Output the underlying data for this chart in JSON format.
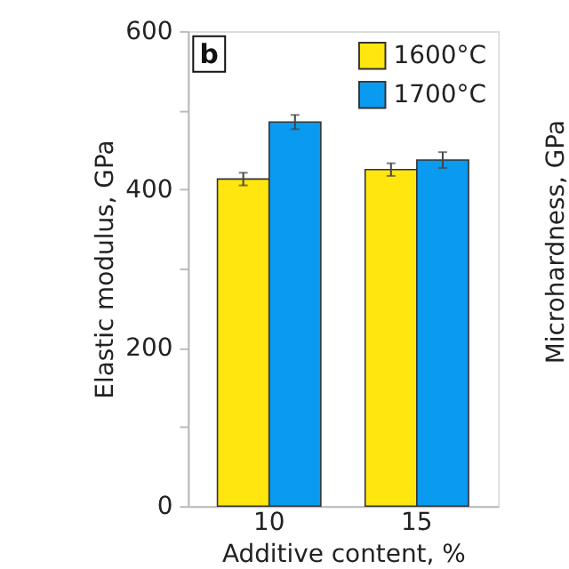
{
  "chart_data": {
    "type": "bar",
    "xlabel": "Additive content, %",
    "ylabel": "Elastic modulus, GPa",
    "categories": [
      "10",
      "15"
    ],
    "series": [
      {
        "name": "1600°C",
        "color": "#ffe60f",
        "values": [
          413,
          425
        ],
        "errors": [
          8,
          8
        ]
      },
      {
        "name": "1700°C",
        "color": "#0a9af0",
        "values": [
          485,
          437
        ],
        "errors": [
          9,
          10
        ]
      }
    ],
    "ylim": [
      0,
      600
    ],
    "yticks": [
      0,
      {
        "value": 100,
        "label": null
      },
      200,
      {
        "value": 300,
        "label": null
      },
      400,
      {
        "value": 500,
        "label": null
      },
      600
    ],
    "grid": false,
    "legend": "top right",
    "annotations": [
      "b",
      "Microhardness, GPa"
    ]
  }
}
